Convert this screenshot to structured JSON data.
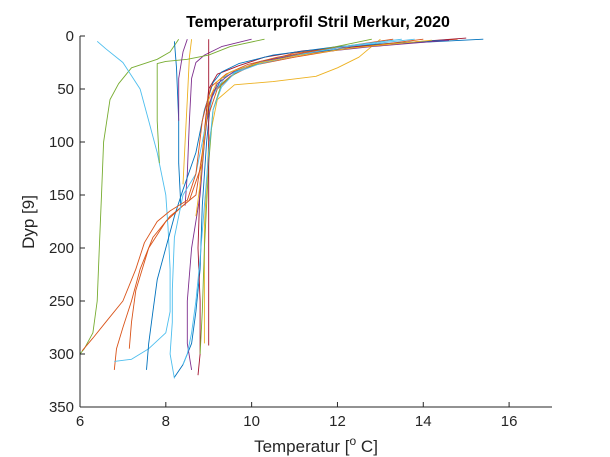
{
  "chart_data": {
    "type": "line",
    "title": "Temperaturprofil Stril Merkur, 2020",
    "xlabel_main": "Temperatur [",
    "xlabel_sup": "o",
    "xlabel_end": " C]",
    "ylabel": "Dyp [9]",
    "xlim": [
      6,
      17
    ],
    "ylim": [
      0,
      350
    ],
    "y_reversed": true,
    "xticks": [
      6,
      8,
      10,
      12,
      14,
      16
    ],
    "yticks": [
      0,
      50,
      100,
      150,
      200,
      250,
      300,
      350
    ],
    "grid": false,
    "series": [
      {
        "color": "#0072BD",
        "points": [
          [
            15.4,
            3
          ],
          [
            13,
            8
          ],
          [
            11.5,
            15
          ],
          [
            10.5,
            22
          ],
          [
            9.8,
            30
          ],
          [
            9.3,
            40
          ],
          [
            9.05,
            60
          ],
          [
            8.95,
            100
          ],
          [
            8.85,
            160
          ],
          [
            8.8,
            220
          ],
          [
            8.7,
            260
          ],
          [
            8.6,
            290
          ],
          [
            8.4,
            310
          ],
          [
            8.2,
            322
          ]
        ]
      },
      {
        "color": "#D95319",
        "points": [
          [
            14.8,
            3
          ],
          [
            12.5,
            9
          ],
          [
            11,
            16
          ],
          [
            10.2,
            25
          ],
          [
            9.6,
            35
          ],
          [
            9.2,
            50
          ],
          [
            8.95,
            80
          ],
          [
            8.85,
            120
          ],
          [
            8.55,
            155
          ],
          [
            8.1,
            170
          ],
          [
            7.7,
            190
          ],
          [
            7.4,
            220
          ],
          [
            7.2,
            250
          ],
          [
            7.0,
            275
          ],
          [
            6.85,
            295
          ],
          [
            6.8,
            315
          ]
        ]
      },
      {
        "color": "#EDB120",
        "points": [
          [
            13,
            3
          ],
          [
            12.5,
            20
          ],
          [
            12,
            30
          ],
          [
            11.5,
            38
          ],
          [
            10.5,
            43
          ],
          [
            9.6,
            46
          ],
          [
            9.2,
            60
          ],
          [
            9.0,
            100
          ],
          [
            8.9,
            180
          ],
          [
            8.9,
            260
          ],
          [
            8.9,
            290
          ]
        ]
      },
      {
        "color": "#7E2F8E",
        "points": [
          [
            10,
            3
          ],
          [
            9.3,
            10
          ],
          [
            8.9,
            18
          ],
          [
            8.7,
            25
          ],
          [
            8.6,
            40
          ],
          [
            8.55,
            80
          ],
          [
            8.5,
            130
          ],
          [
            8.45,
            160
          ]
        ]
      },
      {
        "color": "#77AC30",
        "points": [
          [
            8.3,
            3
          ],
          [
            8.1,
            15
          ],
          [
            7.8,
            22
          ],
          [
            7.5,
            26
          ],
          [
            7.2,
            30
          ],
          [
            6.9,
            45
          ],
          [
            6.7,
            60
          ],
          [
            6.55,
            100
          ],
          [
            6.5,
            150
          ],
          [
            6.45,
            200
          ],
          [
            6.4,
            250
          ],
          [
            6.3,
            280
          ],
          [
            6.1,
            295
          ],
          [
            6.0,
            300
          ]
        ]
      },
      {
        "color": "#4DBEEE",
        "points": [
          [
            6.4,
            5
          ],
          [
            6.6,
            12
          ],
          [
            7,
            25
          ],
          [
            7.4,
            50
          ],
          [
            7.6,
            80
          ],
          [
            7.8,
            110
          ],
          [
            7.9,
            130
          ],
          [
            8.0,
            150
          ],
          [
            8.05,
            180
          ],
          [
            8.1,
            220
          ],
          [
            8.1,
            260
          ],
          [
            8.0,
            280
          ],
          [
            7.6,
            295
          ],
          [
            7.2,
            305
          ],
          [
            6.8,
            307
          ]
        ]
      },
      {
        "color": "#A2142F",
        "points": [
          [
            15,
            2
          ],
          [
            13,
            8
          ],
          [
            11.2,
            14
          ],
          [
            10.3,
            20
          ],
          [
            9.7,
            28
          ],
          [
            9.2,
            36
          ],
          [
            9.0,
            50
          ],
          [
            8.9,
            90
          ],
          [
            8.8,
            140
          ],
          [
            8.75,
            200
          ],
          [
            8.8,
            250
          ],
          [
            8.8,
            300
          ],
          [
            8.75,
            320
          ]
        ]
      },
      {
        "color": "#0072BD",
        "points": [
          [
            14.5,
            4
          ],
          [
            12,
            10
          ],
          [
            10.5,
            18
          ],
          [
            9.7,
            26
          ],
          [
            9.3,
            34
          ],
          [
            9.1,
            44
          ],
          [
            8.9,
            70
          ],
          [
            8.7,
            110
          ],
          [
            8.4,
            145
          ],
          [
            8.2,
            170
          ],
          [
            8.0,
            200
          ],
          [
            7.8,
            230
          ],
          [
            7.7,
            260
          ],
          [
            7.6,
            290
          ],
          [
            7.55,
            315
          ]
        ]
      },
      {
        "color": "#D95319",
        "points": [
          [
            14,
            3
          ],
          [
            12.2,
            12
          ],
          [
            11,
            20
          ],
          [
            10,
            28
          ],
          [
            9.5,
            38
          ],
          [
            9.1,
            52
          ],
          [
            8.95,
            75
          ],
          [
            8.85,
            110
          ],
          [
            8.7,
            150
          ],
          [
            8.4,
            160
          ],
          [
            8.0,
            175
          ],
          [
            7.6,
            200
          ],
          [
            7.3,
            240
          ],
          [
            7.2,
            270
          ],
          [
            7.15,
            295
          ]
        ]
      },
      {
        "color": "#77AC30",
        "points": [
          [
            12.8,
            3
          ],
          [
            11.5,
            14
          ],
          [
            10.5,
            22
          ],
          [
            9.8,
            30
          ],
          [
            9.3,
            45
          ],
          [
            9.1,
            70
          ],
          [
            9.0,
            120
          ],
          [
            8.9,
            200
          ],
          [
            8.85,
            260
          ],
          [
            8.8,
            300
          ]
        ]
      },
      {
        "color": "#4DBEEE",
        "points": [
          [
            13.8,
            3
          ],
          [
            12,
            11
          ],
          [
            10.8,
            19
          ],
          [
            10,
            27
          ],
          [
            9.4,
            38
          ],
          [
            9.1,
            55
          ],
          [
            8.9,
            90
          ],
          [
            8.7,
            130
          ],
          [
            8.4,
            150
          ],
          [
            8.2,
            190
          ],
          [
            8.15,
            240
          ],
          [
            8.15,
            270
          ],
          [
            8.1,
            300
          ],
          [
            8.2,
            323
          ]
        ]
      },
      {
        "color": "#7E2F8E",
        "points": [
          [
            14.6,
            4
          ],
          [
            12.8,
            10
          ],
          [
            11.2,
            17
          ],
          [
            10.2,
            24
          ],
          [
            9.6,
            33
          ],
          [
            9.2,
            45
          ],
          [
            9.0,
            65
          ],
          [
            8.9,
            100
          ],
          [
            8.8,
            150
          ],
          [
            8.6,
            200
          ],
          [
            8.5,
            250
          ],
          [
            8.5,
            290
          ],
          [
            8.6,
            315
          ]
        ]
      },
      {
        "color": "#EDB120",
        "points": [
          [
            8.6,
            3
          ],
          [
            8.55,
            20
          ],
          [
            8.5,
            60
          ],
          [
            8.45,
            100
          ],
          [
            8.4,
            140
          ]
        ]
      },
      {
        "color": "#A2142F",
        "points": [
          [
            9.0,
            3
          ],
          [
            9.0,
            50
          ],
          [
            9.0,
            150
          ],
          [
            9.0,
            250
          ],
          [
            9.0,
            292
          ]
        ]
      },
      {
        "color": "#0072BD",
        "points": [
          [
            8.2,
            5
          ],
          [
            8.25,
            30
          ],
          [
            8.3,
            80
          ],
          [
            8.3,
            120
          ],
          [
            8.35,
            160
          ]
        ]
      },
      {
        "color": "#D95319",
        "points": [
          [
            13.3,
            3
          ],
          [
            11.8,
            12
          ],
          [
            10.6,
            20
          ],
          [
            9.9,
            27
          ],
          [
            9.4,
            36
          ],
          [
            9.05,
            48
          ],
          [
            8.85,
            80
          ],
          [
            8.7,
            130
          ],
          [
            8.5,
            155
          ],
          [
            8.1,
            165
          ],
          [
            7.8,
            175
          ],
          [
            7.5,
            195
          ],
          [
            7.3,
            220
          ],
          [
            7.0,
            250
          ],
          [
            6.6,
            270
          ],
          [
            6.3,
            285
          ],
          [
            6.05,
            297
          ]
        ]
      },
      {
        "color": "#77AC30",
        "points": [
          [
            10.3,
            3
          ],
          [
            9.5,
            10
          ],
          [
            9.0,
            18
          ],
          [
            8.5,
            22
          ],
          [
            8.0,
            24
          ],
          [
            7.8,
            26
          ],
          [
            7.8,
            40
          ],
          [
            7.8,
            80
          ],
          [
            7.85,
            120
          ]
        ]
      },
      {
        "color": "#4DBEEE",
        "points": [
          [
            13.5,
            3
          ],
          [
            12.3,
            9
          ],
          [
            11.2,
            17
          ],
          [
            10.2,
            26
          ],
          [
            9.6,
            35
          ],
          [
            9.3,
            48
          ],
          [
            9.1,
            70
          ],
          [
            9.0,
            110
          ],
          [
            8.9,
            160
          ],
          [
            8.8,
            210
          ],
          [
            8.7,
            250
          ],
          [
            8.6,
            280
          ],
          [
            8.5,
            300
          ],
          [
            8.4,
            310
          ]
        ]
      },
      {
        "color": "#7E2F8E",
        "points": [
          [
            8.5,
            3
          ],
          [
            8.4,
            15
          ],
          [
            8.3,
            40
          ],
          [
            8.3,
            80
          ]
        ]
      },
      {
        "color": "#EDB120",
        "points": [
          [
            14.2,
            4
          ],
          [
            12.4,
            11
          ],
          [
            11,
            19
          ],
          [
            10.1,
            26
          ],
          [
            9.5,
            34
          ],
          [
            9.2,
            43
          ],
          [
            9.0,
            60
          ],
          [
            8.9,
            95
          ],
          [
            8.8,
            140
          ],
          [
            8.7,
            170
          ]
        ]
      }
    ]
  }
}
